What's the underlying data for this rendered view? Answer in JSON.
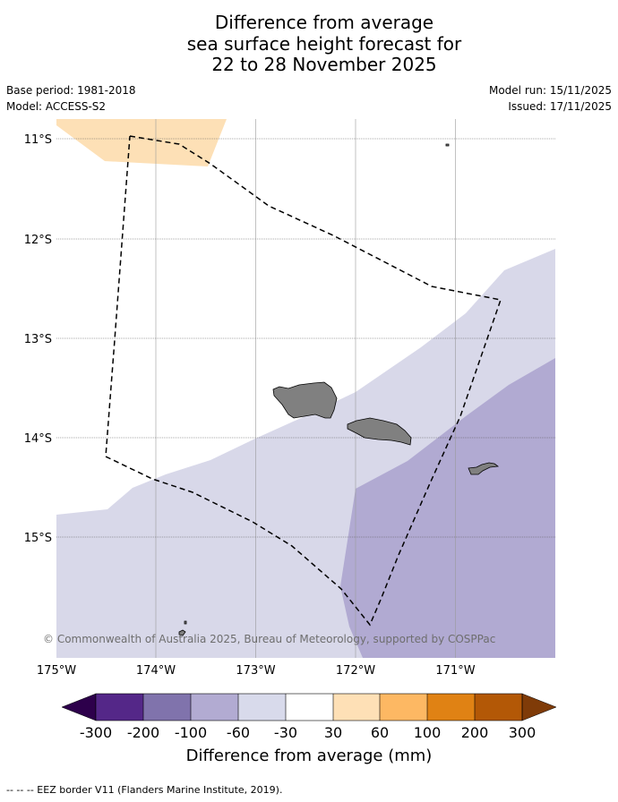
{
  "title": {
    "line1": "Difference from average",
    "line2": "sea surface height forecast for",
    "line3": "22 to 28 November 2025"
  },
  "meta": {
    "base_period": "Base period: 1981-2018",
    "model": "Model: ACCESS-S2",
    "model_run": "Model run: 15/11/2025",
    "issued": "Issued: 17/11/2025"
  },
  "map": {
    "lat_labels": [
      "11°S",
      "12°S",
      "13°S",
      "14°S",
      "15°S"
    ],
    "lon_labels": [
      "175°W",
      "174°W",
      "173°W",
      "172°W",
      "171°W"
    ],
    "attribution": "© Commonwealth of Australia 2025, Bureau of Meteorology, supported by COSPPac",
    "colors": {
      "land": "#808080",
      "band_minus60_minus30": "#d8d8e9",
      "band_minus100_minus60": "#b1aad2",
      "band_30_60": "#fde0b6",
      "eez_line": "#000000"
    }
  },
  "colorbar": {
    "ticks": [
      "-300",
      "-200",
      "-100",
      "-60",
      "-30",
      "30",
      "60",
      "100",
      "200",
      "300"
    ],
    "colors": [
      "#2d004b",
      "#542788",
      "#8073ac",
      "#b2abd2",
      "#d8daeb",
      "#ffffff",
      "#fee0b6",
      "#fdb863",
      "#e08214",
      "#b35806",
      "#7f3b08"
    ],
    "label": "Difference from average (mm)"
  },
  "footer": {
    "legend": "--  --  -- EEZ border V11 (Flanders Marine Institute, 2019)."
  }
}
